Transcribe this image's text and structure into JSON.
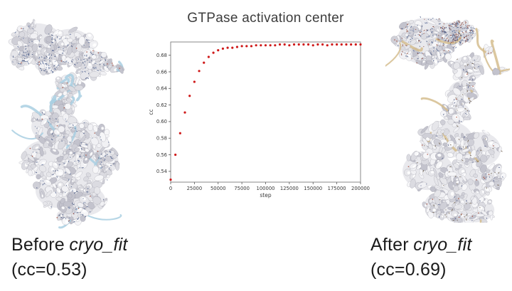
{
  "chart_data": {
    "type": "scatter",
    "title": "GTPase activation center",
    "xlabel": "step",
    "ylabel": "cc",
    "x": [
      0,
      5000,
      10000,
      15000,
      20000,
      25000,
      30000,
      35000,
      40000,
      45000,
      50000,
      55000,
      60000,
      65000,
      70000,
      75000,
      80000,
      85000,
      90000,
      95000,
      100000,
      105000,
      110000,
      115000,
      120000,
      125000,
      130000,
      135000,
      140000,
      145000,
      150000,
      155000,
      160000,
      165000,
      170000,
      175000,
      180000,
      185000,
      190000,
      195000,
      200000
    ],
    "y": [
      0.53,
      0.56,
      0.586,
      0.611,
      0.631,
      0.648,
      0.661,
      0.671,
      0.678,
      0.683,
      0.686,
      0.688,
      0.689,
      0.689,
      0.69,
      0.691,
      0.691,
      0.691,
      0.692,
      0.692,
      0.692,
      0.692,
      0.692,
      0.693,
      0.693,
      0.692,
      0.693,
      0.693,
      0.693,
      0.693,
      0.692,
      0.693,
      0.693,
      0.692,
      0.693,
      0.693,
      0.693,
      0.693,
      0.693,
      0.693,
      0.693
    ],
    "xticks": [
      0,
      25000,
      50000,
      75000,
      100000,
      125000,
      150000,
      175000,
      200000
    ],
    "yticks": [
      0.54,
      0.56,
      0.58,
      0.6,
      0.62,
      0.64,
      0.66,
      0.68
    ],
    "xlim": [
      0,
      200000
    ],
    "ylim": [
      0.527,
      0.696
    ],
    "marker_color": "#cf1a1a",
    "grid": false,
    "legend": null
  },
  "captions": {
    "before": {
      "prefix": "Before",
      "program": "cryo_fit",
      "cc": "(cc=0.53)"
    },
    "after": {
      "prefix": "After",
      "program": "cryo_fit",
      "cc": "(cc=0.69)"
    }
  },
  "figures": {
    "before_map": {
      "label": "cryo-EM density map with model, before fitting",
      "surface_color": "#e9e9ed",
      "ribbon_color": "#a9cfe2",
      "atom_color": "#3f517e",
      "red_atom_color": "#a8513f"
    },
    "after_map": {
      "label": "cryo-EM density map with model, after fitting",
      "surface_color": "#e9e9ed",
      "ribbon_color": "#d5bd8e",
      "atom_color": "#3f517e",
      "red_atom_color": "#a8513f"
    }
  }
}
